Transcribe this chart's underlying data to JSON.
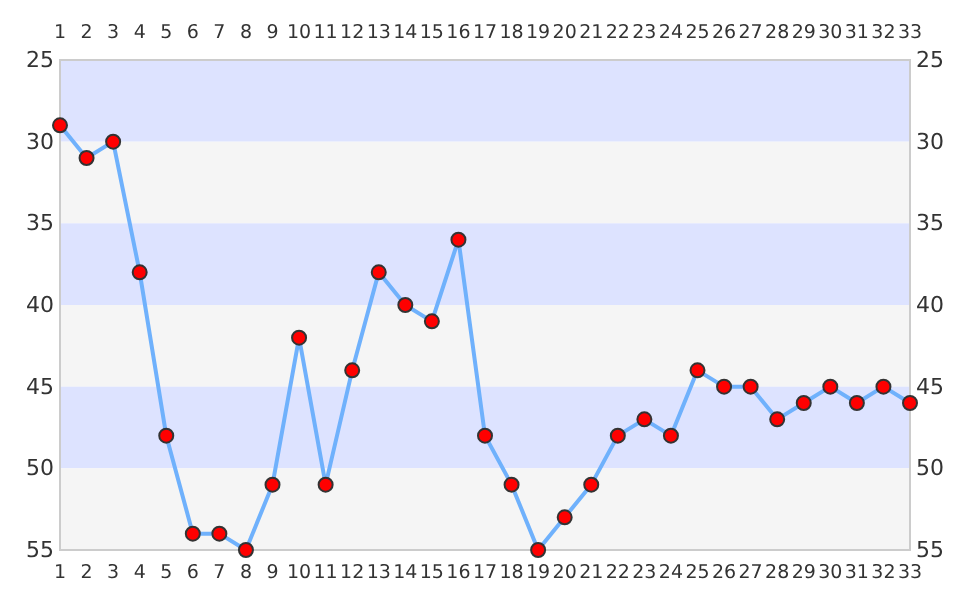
{
  "chart_data": {
    "type": "line",
    "categories": [
      "1",
      "2",
      "3",
      "4",
      "5",
      "6",
      "7",
      "8",
      "9",
      "10",
      "11",
      "12",
      "13",
      "14",
      "15",
      "16",
      "17",
      "18",
      "19",
      "20",
      "21",
      "22",
      "23",
      "24",
      "25",
      "26",
      "27",
      "28",
      "29",
      "30",
      "31",
      "32",
      "33"
    ],
    "series": [
      {
        "color": "#6fb1fc",
        "values": [
          29,
          31,
          30,
          38,
          48,
          54,
          54,
          55,
          51,
          42,
          51,
          44,
          38,
          40,
          41,
          36,
          48,
          51,
          55,
          53,
          51,
          48,
          47,
          48,
          44,
          45,
          45,
          47,
          46,
          45,
          46,
          45,
          46
        ]
      }
    ],
    "ylim": [
      55,
      25
    ],
    "yticks": [
      55,
      50,
      45,
      40,
      35,
      30,
      25
    ],
    "y2lim": [
      55,
      25
    ],
    "y2ticks": [
      55,
      50,
      45,
      40,
      35,
      30,
      25
    ],
    "bands": [
      {
        "axis": "y",
        "from": 25,
        "to": 30,
        "color": "#dde3ff"
      },
      {
        "axis": "y",
        "from": 30,
        "to": 35,
        "color": "#f5f5f5"
      },
      {
        "axis": "y",
        "from": 35,
        "to": 40,
        "color": "#dde3ff"
      },
      {
        "axis": "y",
        "from": 40,
        "to": 45,
        "color": "#f5f5f5"
      },
      {
        "axis": "y",
        "from": 45,
        "to": 50,
        "color": "#dde3ff"
      },
      {
        "axis": "y",
        "from": 50,
        "to": 55,
        "color": "#f5f5f5"
      }
    ],
    "marker": "circle",
    "line_style": "solid",
    "grid": false
  }
}
